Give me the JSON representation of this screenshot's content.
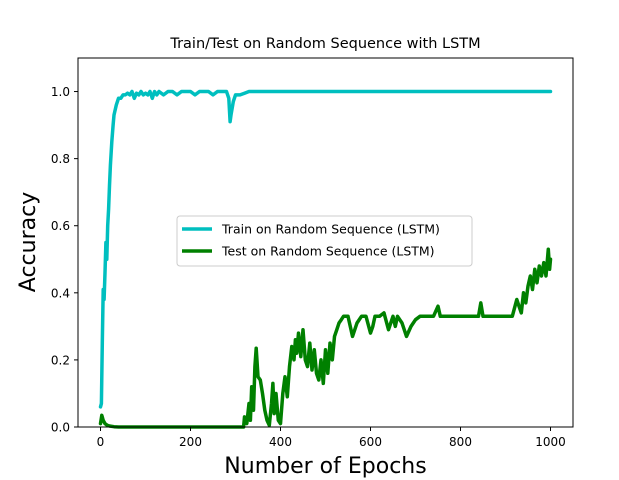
{
  "chart_data": {
    "type": "line",
    "title": "Train/Test on Random Sequence with LSTM",
    "xlabel": "Number of Epochs",
    "ylabel": "Accuracy",
    "xlim": [
      -50,
      1050
    ],
    "ylim": [
      0.0,
      1.1
    ],
    "xticks": [
      0,
      200,
      400,
      600,
      800,
      1000
    ],
    "yticks": [
      0.0,
      0.2,
      0.4,
      0.6,
      0.8,
      1.0
    ],
    "grid": false,
    "legend_position": "center",
    "series": [
      {
        "name": "Train on Random Sequence (LSTM)",
        "color": "#00bfbf",
        "x": [
          0,
          2,
          4,
          6,
          8,
          10,
          12,
          14,
          16,
          18,
          20,
          22,
          25,
          28,
          30,
          35,
          40,
          45,
          50,
          55,
          60,
          65,
          70,
          75,
          80,
          85,
          90,
          95,
          100,
          105,
          110,
          115,
          120,
          125,
          130,
          140,
          150,
          160,
          170,
          180,
          190,
          200,
          210,
          220,
          230,
          240,
          250,
          260,
          270,
          280,
          285,
          288,
          290,
          295,
          300,
          310,
          320,
          330,
          340,
          350,
          400,
          500,
          600,
          700,
          800,
          900,
          1000
        ],
        "values": [
          0.06,
          0.07,
          0.25,
          0.41,
          0.38,
          0.46,
          0.55,
          0.5,
          0.6,
          0.65,
          0.72,
          0.78,
          0.85,
          0.9,
          0.93,
          0.96,
          0.98,
          0.98,
          0.99,
          0.99,
          0.995,
          0.99,
          1.0,
          0.98,
          0.995,
          0.99,
          1.0,
          0.99,
          0.995,
          0.99,
          1.0,
          0.98,
          1.0,
          0.99,
          1.0,
          0.99,
          1.0,
          1.0,
          0.99,
          1.0,
          1.0,
          1.0,
          0.99,
          1.0,
          1.0,
          1.0,
          0.99,
          1.0,
          1.0,
          1.0,
          0.98,
          0.91,
          0.93,
          0.97,
          0.99,
          0.99,
          0.995,
          1.0,
          1.0,
          1.0,
          1.0,
          1.0,
          1.0,
          1.0,
          1.0,
          1.0,
          1.0
        ]
      },
      {
        "name": "Test on Random Sequence (LSTM)",
        "color": "#008000",
        "x": [
          0,
          3,
          6,
          10,
          15,
          20,
          30,
          40,
          60,
          100,
          200,
          300,
          318,
          320,
          325,
          330,
          333,
          336,
          340,
          343,
          346,
          350,
          355,
          360,
          365,
          370,
          375,
          380,
          383,
          386,
          390,
          395,
          400,
          405,
          410,
          415,
          420,
          425,
          430,
          433,
          436,
          440,
          445,
          450,
          455,
          460,
          465,
          470,
          475,
          480,
          485,
          490,
          495,
          500,
          505,
          510,
          515,
          520,
          525,
          530,
          535,
          540,
          545,
          550,
          560,
          570,
          580,
          590,
          600,
          605,
          610,
          620,
          630,
          640,
          650,
          655,
          660,
          670,
          680,
          690,
          700,
          710,
          720,
          730,
          740,
          750,
          755,
          760,
          780,
          800,
          820,
          840,
          845,
          850,
          870,
          900,
          915,
          925,
          930,
          935,
          940,
          945,
          950,
          955,
          960,
          965,
          970,
          975,
          980,
          985,
          990,
          995,
          998,
          1000
        ],
        "values": [
          0.01,
          0.035,
          0.02,
          0.01,
          0.005,
          0.003,
          0.001,
          0.0,
          0.0,
          0.0,
          0.0,
          0.0,
          0.0,
          0.03,
          0.01,
          0.07,
          0.02,
          0.12,
          0.05,
          0.18,
          0.235,
          0.15,
          0.14,
          0.1,
          0.05,
          0.02,
          0.005,
          0.07,
          0.13,
          0.04,
          0.1,
          0.02,
          0.01,
          0.1,
          0.15,
          0.09,
          0.18,
          0.24,
          0.2,
          0.26,
          0.22,
          0.28,
          0.21,
          0.29,
          0.2,
          0.18,
          0.25,
          0.17,
          0.23,
          0.16,
          0.14,
          0.2,
          0.13,
          0.23,
          0.16,
          0.25,
          0.2,
          0.27,
          0.29,
          0.31,
          0.32,
          0.33,
          0.33,
          0.33,
          0.27,
          0.31,
          0.33,
          0.33,
          0.28,
          0.3,
          0.33,
          0.33,
          0.34,
          0.29,
          0.33,
          0.3,
          0.33,
          0.31,
          0.27,
          0.3,
          0.32,
          0.33,
          0.33,
          0.33,
          0.33,
          0.36,
          0.33,
          0.33,
          0.33,
          0.33,
          0.33,
          0.33,
          0.37,
          0.33,
          0.33,
          0.33,
          0.33,
          0.38,
          0.36,
          0.34,
          0.4,
          0.37,
          0.42,
          0.45,
          0.41,
          0.47,
          0.43,
          0.48,
          0.45,
          0.49,
          0.45,
          0.53,
          0.47,
          0.5
        ]
      }
    ]
  }
}
